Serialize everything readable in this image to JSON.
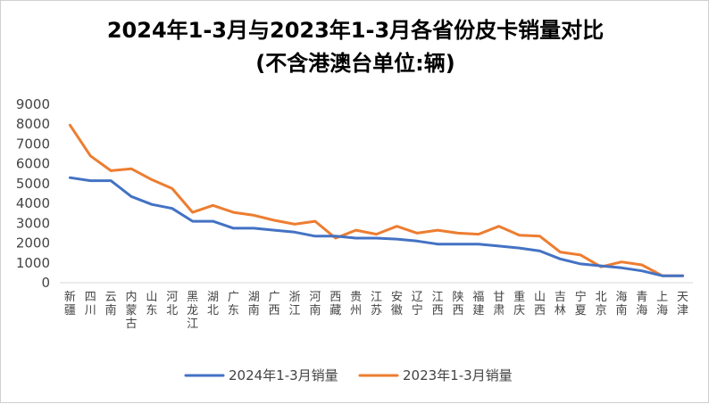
{
  "chart_data": {
    "type": "line",
    "title": "2024年1-3月与2023年1-3月各省份皮卡销量对比",
    "subtitle": "(不含港澳台单位:辆)",
    "categories": [
      "新疆",
      "四川",
      "云南",
      "内蒙古",
      "山东",
      "河北",
      "黑龙江",
      "湖北",
      "广东",
      "湖南",
      "广西",
      "浙江",
      "河南",
      "西藏",
      "贵州",
      "江苏",
      "安徽",
      "辽宁",
      "江西",
      "陕西",
      "福建",
      "甘肃",
      "重庆",
      "山西",
      "吉林",
      "宁夏",
      "北京",
      "海南",
      "青海",
      "上海",
      "天津"
    ],
    "ylim": [
      0,
      9000
    ],
    "yticks": [
      "0",
      "1000",
      "2000",
      "3000",
      "4000",
      "5000",
      "6000",
      "7000",
      "8000",
      "9000"
    ],
    "grid": false,
    "legend_position": "bottom",
    "series": [
      {
        "name": "2024年1-3月销量",
        "color": "#4472C4",
        "values": [
          5300,
          5150,
          5150,
          4350,
          3950,
          3750,
          3100,
          3100,
          2750,
          2750,
          2650,
          2550,
          2350,
          2350,
          2250,
          2250,
          2200,
          2100,
          1950,
          1950,
          1950,
          1850,
          1750,
          1600,
          1200,
          950,
          850,
          750,
          600,
          350,
          350
        ]
      },
      {
        "name": "2023年1-3月销量",
        "color": "#ED7D31",
        "values": [
          7950,
          6400,
          5650,
          5750,
          5200,
          4750,
          3550,
          3900,
          3550,
          3400,
          3150,
          2950,
          3100,
          2250,
          2650,
          2450,
          2850,
          2500,
          2650,
          2500,
          2450,
          2850,
          2400,
          2350,
          1550,
          1400,
          800,
          1050,
          900,
          350,
          350
        ]
      }
    ]
  }
}
